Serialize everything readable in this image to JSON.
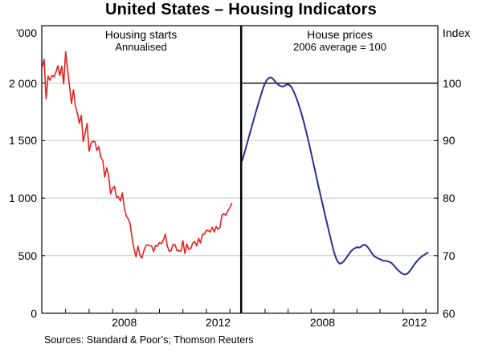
{
  "title": "United States – Housing Indicators",
  "footer": {
    "sources": "Sources: Standard & Poor’s; Thomson Reuters"
  },
  "chart_data": {
    "type": "line",
    "layout": "two-panel-shared-frame",
    "grid": "horizontal",
    "grid_color": "#c8c8c8",
    "frame_color": "#000000",
    "x_start_year": 2005,
    "x_frequency": "monthly",
    "x_range_label": "Jan 2005 – Feb 2013",
    "panels": [
      {
        "id": "housing-starts",
        "title": "Housing starts",
        "subtitle": "Annualised",
        "axis_side": "left",
        "unit_label": "'000",
        "ylim": [
          0,
          2500
        ],
        "yticks": [
          {
            "value": 0,
            "label": "0"
          },
          {
            "value": 500,
            "label": "500"
          },
          {
            "value": 1000,
            "label": "1 000"
          },
          {
            "value": 1500,
            "label": "1 500"
          },
          {
            "value": 2000,
            "label": "2 000"
          }
        ],
        "xtick_years": [
          2006,
          2007,
          2008,
          2009,
          2010,
          2011,
          2012,
          2013
        ],
        "xlabels": [
          {
            "label": "2008",
            "t": 2008.5
          },
          {
            "label": "2012",
            "t": 2012.5
          }
        ],
        "series": {
          "name": "Housing starts (annualised, thousands)",
          "color": "#e8201d",
          "stroke_width": 1.6,
          "values": [
            2144,
            2207,
            1864,
            2061,
            2025,
            2068,
            2054,
            2095,
            2151,
            2065,
            2147,
            1994,
            2273,
            2119,
            1969,
            1821,
            1942,
            1802,
            1737,
            1650,
            1720,
            1491,
            1570,
            1649,
            1409,
            1480,
            1495,
            1490,
            1415,
            1448,
            1354,
            1330,
            1183,
            1264,
            1197,
            1037,
            1084,
            1103,
            1005,
            1013,
            975,
            1046,
            923,
            844,
            820,
            777,
            652,
            560,
            490,
            582,
            505,
            478,
            540,
            585,
            594,
            586,
            585,
            534,
            588,
            581,
            614,
            604,
            636,
            687,
            583,
            536,
            546,
            599,
            594,
            543,
            545,
            539,
            630,
            518,
            600,
            554,
            561,
            608,
            623,
            585,
            650,
            610,
            685,
            689,
            720,
            718,
            706,
            747,
            706,
            754,
            728,
            749,
            854,
            863,
            851,
            890,
            917,
            954
          ]
        }
      },
      {
        "id": "house-prices",
        "title": "House prices",
        "subtitle": "2006 average = 100",
        "axis_side": "right",
        "unit_label": "Index",
        "ylim": [
          60,
          110
        ],
        "reference_value": 100,
        "yticks": [
          {
            "value": 60,
            "label": "60"
          },
          {
            "value": 70,
            "label": "70"
          },
          {
            "value": 80,
            "label": "80"
          },
          {
            "value": 90,
            "label": "90"
          },
          {
            "value": 100,
            "label": "100"
          }
        ],
        "xtick_years": [
          2006,
          2007,
          2008,
          2009,
          2010,
          2011,
          2012,
          2013
        ],
        "xlabels": [
          {
            "label": "2008",
            "t": 2008.5
          },
          {
            "label": "2012",
            "t": 2012.5
          }
        ],
        "series": {
          "name": "House prices (2006 average = 100)",
          "color": "#2d2f8f",
          "stroke_width": 2,
          "values": [
            86.5,
            87.6,
            88.8,
            90.0,
            91.2,
            92.4,
            93.6,
            94.8,
            95.9,
            97.0,
            98.1,
            99.2,
            100.0,
            100.6,
            100.9,
            101.0,
            100.8,
            100.4,
            100.0,
            99.7,
            99.5,
            99.4,
            99.5,
            99.7,
            99.8,
            99.6,
            99.2,
            98.5,
            97.7,
            96.8,
            95.8,
            94.7,
            93.5,
            92.2,
            90.8,
            89.4,
            87.9,
            86.4,
            84.9,
            83.4,
            81.9,
            80.4,
            79.0,
            77.5,
            76.1,
            74.7,
            73.3,
            71.9,
            70.6,
            69.6,
            68.9,
            68.6,
            68.7,
            69.0,
            69.4,
            69.9,
            70.4,
            70.8,
            71.1,
            71.3,
            71.5,
            71.4,
            71.5,
            71.8,
            71.9,
            71.7,
            71.3,
            70.8,
            70.3,
            69.9,
            69.7,
            69.5,
            69.4,
            69.2,
            69.1,
            69.1,
            69.0,
            68.9,
            68.7,
            68.4,
            68.0,
            67.6,
            67.3,
            67.0,
            66.8,
            66.7,
            66.8,
            67.1,
            67.5,
            68.0,
            68.5,
            68.9,
            69.3,
            69.6,
            69.9,
            70.1,
            70.3,
            70.5
          ]
        }
      }
    ]
  }
}
